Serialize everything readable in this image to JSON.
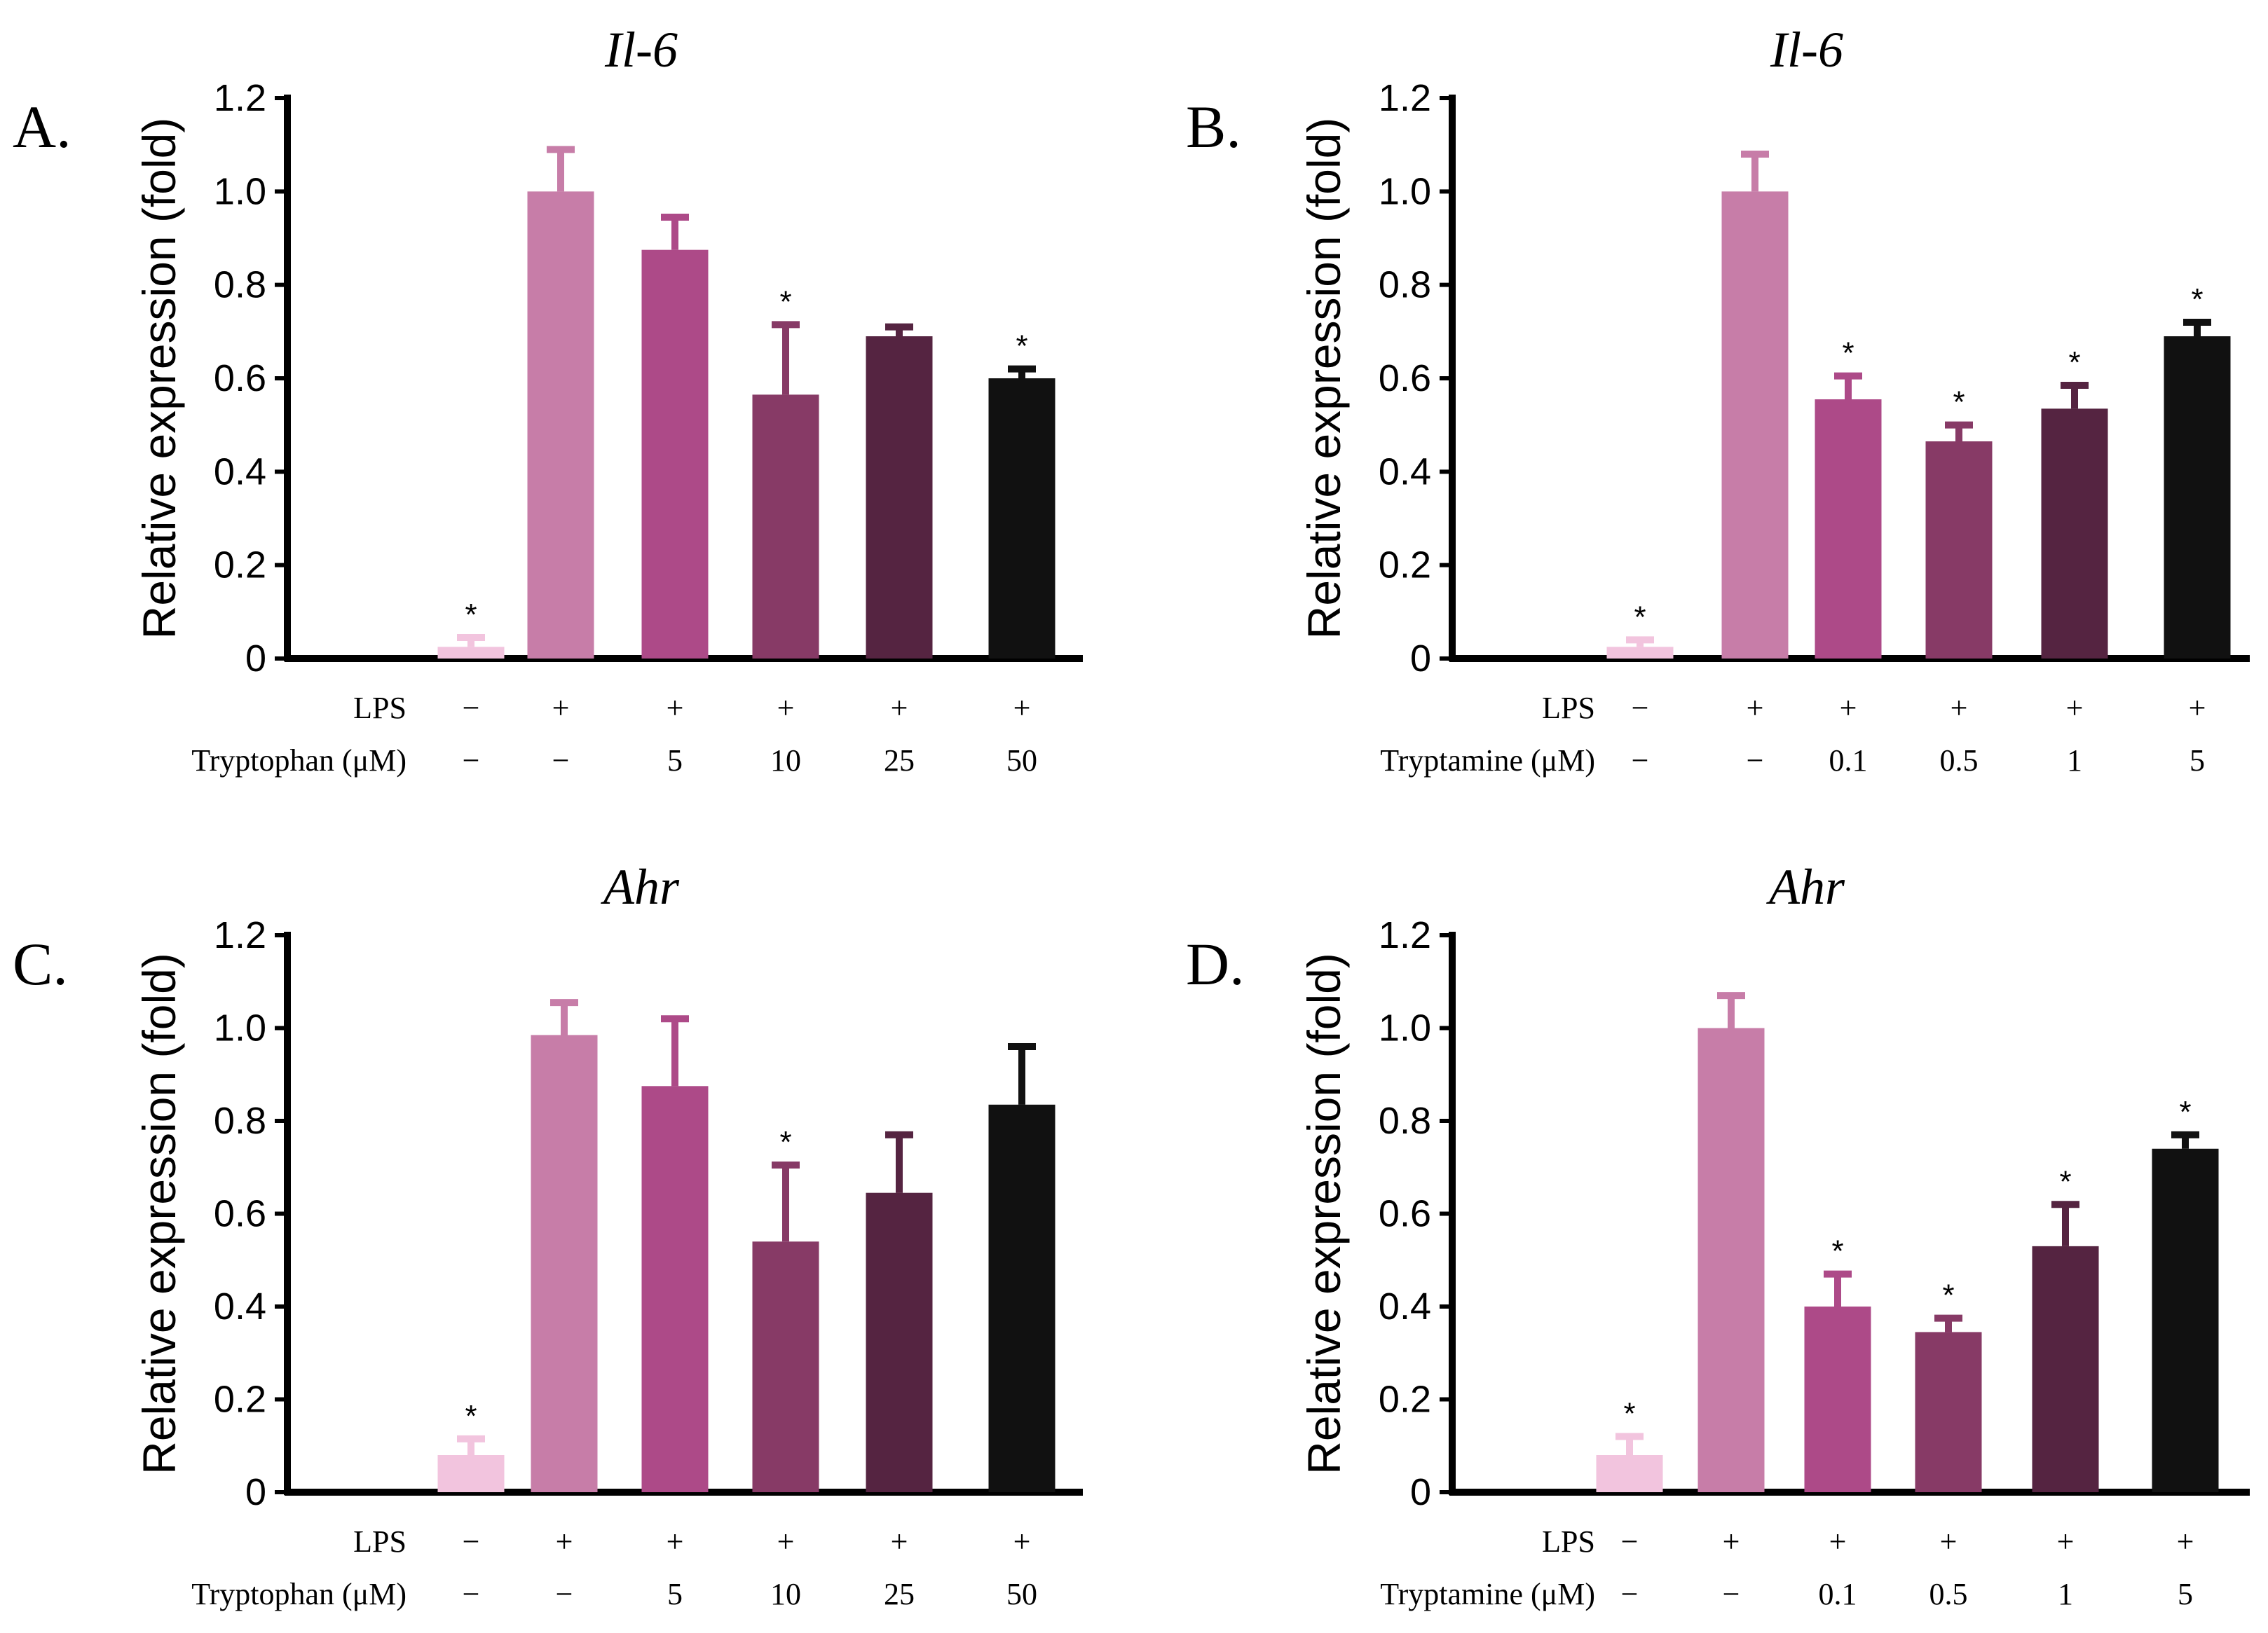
{
  "chart_data": [
    {
      "panel_label": "A.",
      "type": "bar",
      "title": "Il-6",
      "ylabel": "Relative  expression (fold)",
      "ylim": [
        0,
        1.2
      ],
      "yticks": [
        "0",
        "0.2",
        "0.4",
        "0.6",
        "0.8",
        "1.0",
        "1.2"
      ],
      "rows": [
        {
          "label": "LPS",
          "values": [
            "−",
            "+",
            "+",
            "+",
            "+",
            "+"
          ]
        },
        {
          "label": "Tryptophan (μM)",
          "values": [
            "−",
            "−",
            "5",
            "10",
            "25",
            "50"
          ]
        }
      ],
      "values": [
        0.025,
        1.0,
        0.875,
        0.565,
        0.69,
        0.6
      ],
      "errors": [
        0.02,
        0.09,
        0.07,
        0.15,
        0.02,
        0.02
      ],
      "significance": [
        "*",
        "",
        "",
        "*",
        "",
        "*"
      ],
      "colors": [
        "#f2c4de",
        "#c77da8",
        "#ad4a88",
        "#873a66",
        "#552441",
        "#111111"
      ]
    },
    {
      "panel_label": "B.",
      "type": "bar",
      "title": "Il-6",
      "ylabel": "Relative  expression (fold)",
      "ylim": [
        0,
        1.2
      ],
      "yticks": [
        "0",
        "0.2",
        "0.4",
        "0.6",
        "0.8",
        "1.0",
        "1.2"
      ],
      "rows": [
        {
          "label": "LPS",
          "values": [
            "−",
            "+",
            "+",
            "+",
            "+",
            "+"
          ]
        },
        {
          "label": "Tryptamine (μM)",
          "values": [
            "−",
            "−",
            "0.1",
            "0.5",
            "1",
            "5"
          ]
        }
      ],
      "values": [
        0.025,
        1.0,
        0.555,
        0.465,
        0.535,
        0.69
      ],
      "errors": [
        0.015,
        0.08,
        0.05,
        0.035,
        0.05,
        0.03
      ],
      "significance": [
        "*",
        "",
        "*",
        "*",
        "*",
        "*"
      ],
      "colors": [
        "#f2c4de",
        "#c77da8",
        "#ad4a88",
        "#873a66",
        "#552441",
        "#111111"
      ]
    },
    {
      "panel_label": "C.",
      "type": "bar",
      "title": "Ahr",
      "ylabel": "Relative  expression (fold)",
      "ylim": [
        0,
        1.2
      ],
      "yticks": [
        "0",
        "0.2",
        "0.4",
        "0.6",
        "0.8",
        "1.0",
        "1.2"
      ],
      "rows": [
        {
          "label": "LPS",
          "values": [
            "−",
            "+",
            "+",
            "+",
            "+",
            "+"
          ]
        },
        {
          "label": "Tryptophan (μM)",
          "values": [
            "−",
            "−",
            "5",
            "10",
            "25",
            "50"
          ]
        }
      ],
      "values": [
        0.08,
        0.985,
        0.875,
        0.54,
        0.645,
        0.835
      ],
      "errors": [
        0.035,
        0.07,
        0.145,
        0.165,
        0.125,
        0.125
      ],
      "significance": [
        "*",
        "",
        "",
        "*",
        "",
        ""
      ],
      "colors": [
        "#f2c4de",
        "#c77da8",
        "#ad4a88",
        "#873a66",
        "#552441",
        "#111111"
      ]
    },
    {
      "panel_label": "D.",
      "type": "bar",
      "title": "Ahr",
      "ylabel": "Relative  expression (fold)",
      "ylim": [
        0,
        1.2
      ],
      "yticks": [
        "0",
        "0.2",
        "0.4",
        "0.6",
        "0.8",
        "1.0",
        "1.2"
      ],
      "rows": [
        {
          "label": "LPS",
          "values": [
            "−",
            "+",
            "+",
            "+",
            "+",
            "+"
          ]
        },
        {
          "label": "Tryptamine (μM)",
          "values": [
            "−",
            "−",
            "0.1",
            "0.5",
            "1",
            "5"
          ]
        }
      ],
      "values": [
        0.08,
        1.0,
        0.4,
        0.345,
        0.53,
        0.74
      ],
      "errors": [
        0.04,
        0.07,
        0.07,
        0.03,
        0.09,
        0.03
      ],
      "significance": [
        "*",
        "",
        "*",
        "*",
        "*",
        "*"
      ],
      "colors": [
        "#f2c4de",
        "#c77da8",
        "#ad4a88",
        "#873a66",
        "#552441",
        "#111111"
      ]
    }
  ]
}
